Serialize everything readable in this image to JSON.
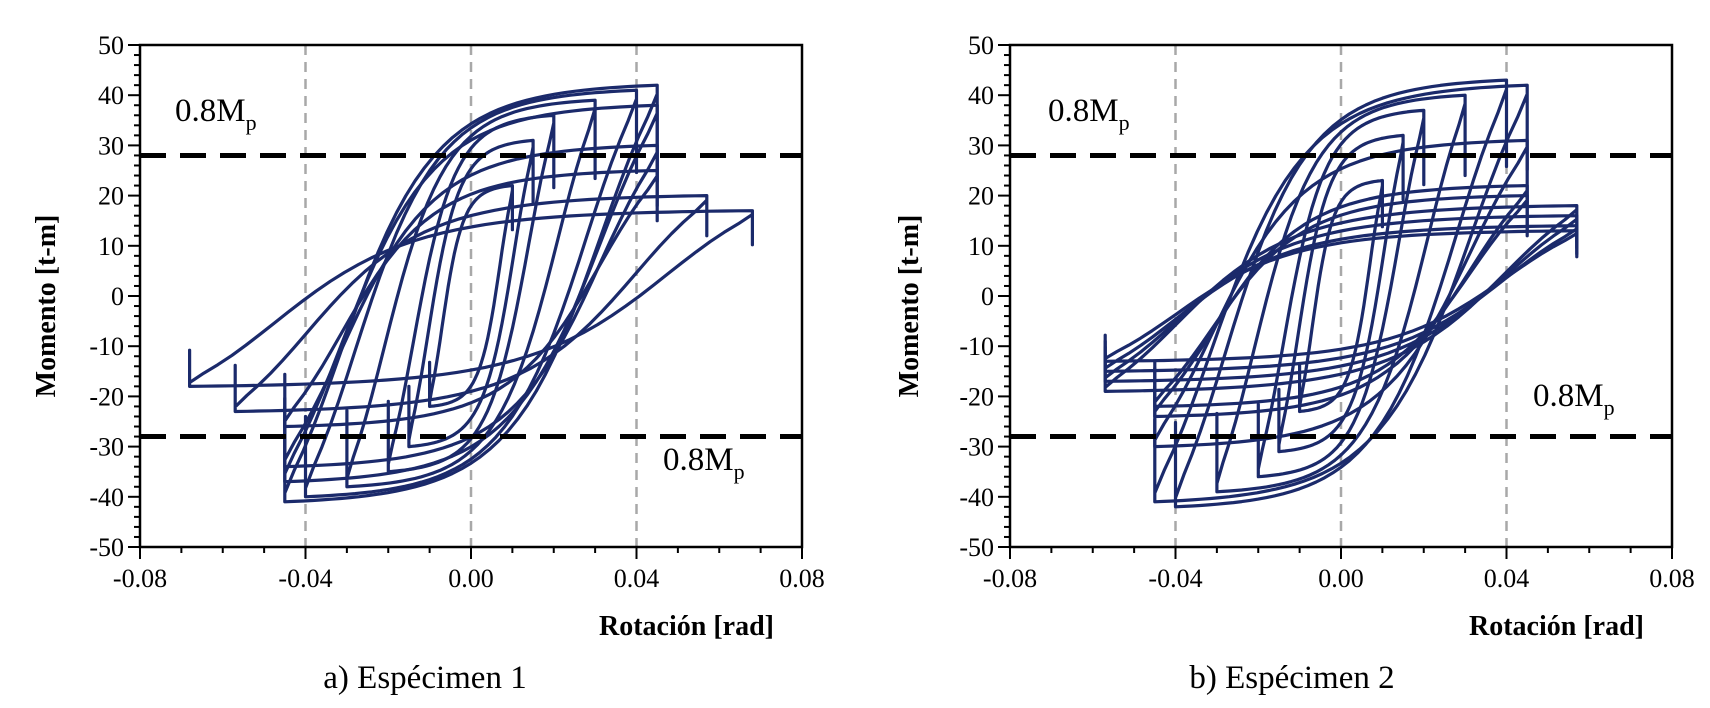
{
  "chart_data": [
    {
      "type": "line",
      "panel": "a",
      "caption": "a) Espécimen 1",
      "xlabel": "Rotación [rad]",
      "ylabel": "Momento [t-m]",
      "xlim": [
        -0.08,
        0.08
      ],
      "ylim": [
        -50,
        50
      ],
      "x_ticks": [
        -0.08,
        -0.04,
        0.0,
        0.04,
        0.08
      ],
      "x_tick_labels": [
        "-0.08",
        "-0.04",
        "0.00",
        "0.04",
        "0.08"
      ],
      "y_ticks": [
        -50,
        -40,
        -30,
        -20,
        -10,
        0,
        10,
        20,
        30,
        40,
        50
      ],
      "y_tick_labels": [
        "-50",
        "-40",
        "-30",
        "-20",
        "-10",
        "0",
        "10",
        "20",
        "30",
        "40",
        "50"
      ],
      "vertical_gridlines": [
        -0.04,
        0.0,
        0.04
      ],
      "reference_lines": [
        {
          "y": 28,
          "label": "0.8M",
          "sub": "p",
          "label_position": "top-left"
        },
        {
          "y": -28,
          "label": "0.8M",
          "sub": "p",
          "label_position": "bottom-right"
        }
      ],
      "series_color": "#1b2a6b",
      "cycles": [
        {
          "theta": 0.01,
          "m_pos": 22,
          "m_neg": -22
        },
        {
          "theta": 0.015,
          "m_pos": 31,
          "m_neg": -30
        },
        {
          "theta": 0.02,
          "m_pos": 36,
          "m_neg": -35
        },
        {
          "theta": 0.03,
          "m_pos": 39,
          "m_neg": -38
        },
        {
          "theta": 0.04,
          "m_pos": 41,
          "m_neg": -40
        },
        {
          "theta": 0.045,
          "m_pos": 42,
          "m_neg": -41
        },
        {
          "theta": 0.045,
          "m_pos": 38,
          "m_neg": -37
        },
        {
          "theta": 0.045,
          "m_pos": 30,
          "m_neg": -34
        },
        {
          "theta": 0.045,
          "m_pos": 25,
          "m_neg": -26
        },
        {
          "theta": 0.057,
          "m_pos": 20,
          "m_neg": -23
        },
        {
          "theta": 0.068,
          "m_pos": 17,
          "m_neg": -18
        }
      ]
    },
    {
      "type": "line",
      "panel": "b",
      "caption": "b) Espécimen 2",
      "xlabel": "Rotación [rad]",
      "ylabel": "Momento [t-m]",
      "xlim": [
        -0.08,
        0.08
      ],
      "ylim": [
        -50,
        50
      ],
      "x_ticks": [
        -0.08,
        -0.04,
        0.0,
        0.04,
        0.08
      ],
      "x_tick_labels": [
        "-0.08",
        "-0.04",
        "0.00",
        "0.04",
        "0.08"
      ],
      "y_ticks": [
        -50,
        -40,
        -30,
        -20,
        -10,
        0,
        10,
        20,
        30,
        40,
        50
      ],
      "y_tick_labels": [
        "-50",
        "-40",
        "-30",
        "-20",
        "-10",
        "0",
        "10",
        "20",
        "30",
        "40",
        "50"
      ],
      "vertical_gridlines": [
        -0.04,
        0.0,
        0.04
      ],
      "reference_lines": [
        {
          "y": 28,
          "label": "0.8M",
          "sub": "p",
          "label_position": "top-left"
        },
        {
          "y": -28,
          "label": "0.8M",
          "sub": "p",
          "label_position": "bottom-right"
        }
      ],
      "series_color": "#1b2a6b",
      "cycles": [
        {
          "theta": 0.01,
          "m_pos": 23,
          "m_neg": -23
        },
        {
          "theta": 0.015,
          "m_pos": 32,
          "m_neg": -31
        },
        {
          "theta": 0.02,
          "m_pos": 37,
          "m_neg": -36
        },
        {
          "theta": 0.03,
          "m_pos": 40,
          "m_neg": -39
        },
        {
          "theta": 0.04,
          "m_pos": 43,
          "m_neg": -42
        },
        {
          "theta": 0.045,
          "m_pos": 42,
          "m_neg": -41
        },
        {
          "theta": 0.045,
          "m_pos": 31,
          "m_neg": -30
        },
        {
          "theta": 0.045,
          "m_pos": 22,
          "m_neg": -24
        },
        {
          "theta": 0.045,
          "m_pos": 20,
          "m_neg": -22
        },
        {
          "theta": 0.057,
          "m_pos": 18,
          "m_neg": -19
        },
        {
          "theta": 0.057,
          "m_pos": 16,
          "m_neg": -17
        },
        {
          "theta": 0.057,
          "m_pos": 14,
          "m_neg": -15
        },
        {
          "theta": 0.057,
          "m_pos": 13,
          "m_neg": -13
        }
      ]
    }
  ]
}
